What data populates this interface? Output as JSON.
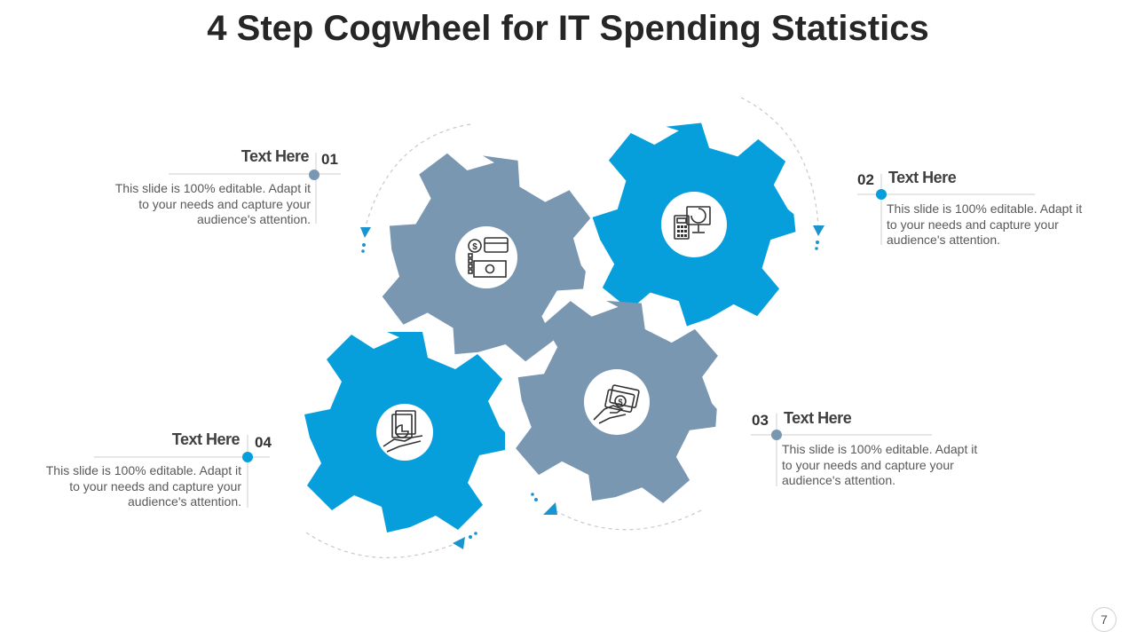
{
  "title": "4 Step Cogwheel for IT Spending Statistics",
  "colors": {
    "blue": "#069FDC",
    "grey": "#7A97B2",
    "connector": "#d0d0d0",
    "arrow": "#1a94cf"
  },
  "steps": [
    {
      "number": "01",
      "heading": "Text Here",
      "text": "This slide is 100% editable. Adapt it to your needs and capture your audience's attention.",
      "icon": "money-card-icon",
      "gear_color": "grey"
    },
    {
      "number": "02",
      "heading": "Text Here",
      "text": "This slide is 100% editable. Adapt it to your needs and capture your audience's attention.",
      "icon": "calculator-monitor-icon",
      "gear_color": "blue"
    },
    {
      "number": "03",
      "heading": "Text Here",
      "text": "This slide is 100% editable. Adapt it to your needs and capture your audience's attention.",
      "icon": "hand-money-icon",
      "gear_color": "grey"
    },
    {
      "number": "04",
      "heading": "Text Here",
      "text": "This slide is 100% editable. Adapt it to your needs and capture your audience's attention.",
      "icon": "hand-report-icon",
      "gear_color": "blue"
    }
  ],
  "page_number": "7"
}
